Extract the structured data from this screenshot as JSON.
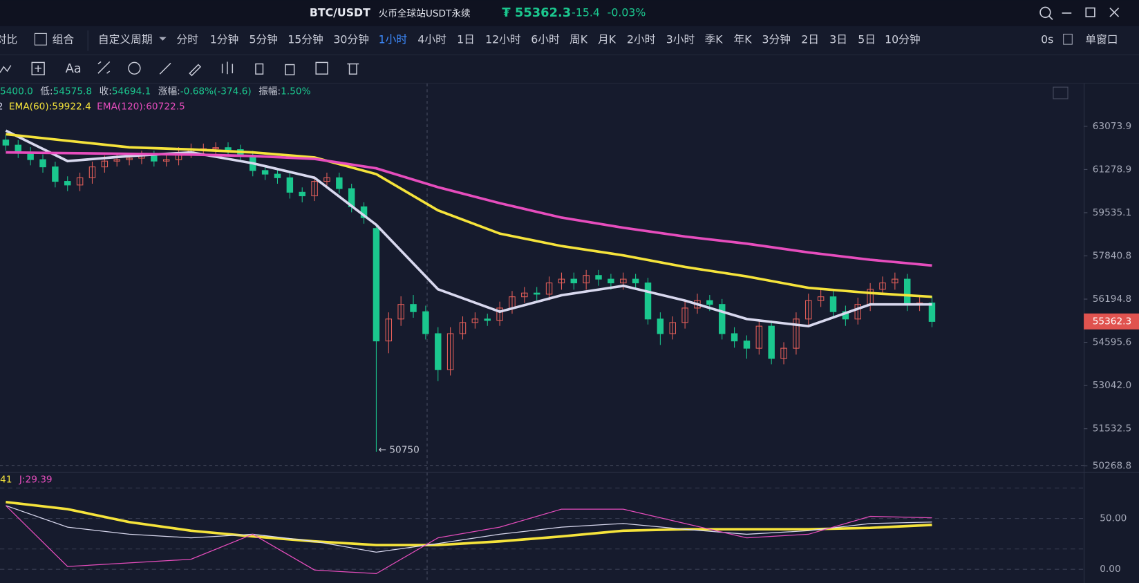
{
  "header": {
    "symbol": "BTC/USDT",
    "exchange": "火币全球站USDT永续",
    "price": "₮ 55362.3",
    "change": "-15.4",
    "change_pct": "-0.03%"
  },
  "toolbar": {
    "left": [
      "对比",
      "组合"
    ],
    "periods": [
      "自定义周期",
      "分时",
      "1分钟",
      "5分钟",
      "15分钟",
      "30分钟",
      "1小时",
      "4小时",
      "1日",
      "12小时",
      "6小时",
      "周K",
      "月K",
      "2小时",
      "3小时",
      "季K",
      "年K",
      "3分钟",
      "2日",
      "3日",
      "5日",
      "10分钟"
    ],
    "active_period": "1小时",
    "right": [
      "0s",
      "单窗口"
    ],
    "text_tool": "Aa"
  },
  "info": [
    {
      "label": "",
      "value": "5400.0"
    },
    {
      "label": "低:",
      "value": "54575.8"
    },
    {
      "label": "收:",
      "value": "54694.1"
    },
    {
      "label": "涨幅:",
      "value": "-0.68%(-374.6)"
    },
    {
      "label": "振幅:",
      "value": "1.50%"
    }
  ],
  "chart_data": [
    {
      "type": "candlestick",
      "log_scale": true,
      "ylim": [
        50116,
        64903
      ],
      "yticks": [
        63073.9,
        61278.9,
        59535.1,
        57840.8,
        56194.8,
        54595.6,
        {
          "value": 53042,
          "label": "53042.0"
        },
        51532.5,
        50268.8
      ],
      "up_color": "#e8605a",
      "down_color": "#1bc78e",
      "open": [
        62500,
        62284,
        61983,
        61684,
        61385,
        60794,
        60647,
        60942,
        61385,
        61624,
        61684,
        61744,
        61833,
        61624,
        61684,
        61983,
        62134,
        62134,
        62180,
        62100,
        61833,
        61237,
        61089,
        60942,
        60354,
        60209,
        60794,
        60942,
        60501,
        59771,
        58911,
        54645,
        55453,
        55996,
        55725,
        54913,
        53607,
        54913,
        55323,
        55453,
        55400,
        55861,
        56282,
        56424,
        56380,
        56806,
        56950,
        56806,
        57091,
        56950,
        56806,
        56950,
        56806,
        55453,
        54913,
        55323,
        55861,
        56141,
        55996,
        54913,
        54645,
        54381,
        55189,
        54011,
        54381,
        55453,
        56141,
        56282,
        55725,
        55453,
        55996,
        56566,
        56806,
        56950,
        55996,
        56050
      ],
      "high": [
        62700,
        62500,
        62200,
        61900,
        61600,
        61000,
        61150,
        61600,
        61850,
        61900,
        61950,
        62050,
        62050,
        61900,
        62200,
        62350,
        62350,
        62400,
        62400,
        62300,
        62050,
        61450,
        61300,
        61150,
        60550,
        61000,
        61150,
        61150,
        60700,
        59950,
        59100,
        55700,
        56300,
        56350,
        55950,
        55150,
        55150,
        55550,
        55700,
        55650,
        56100,
        56500,
        56650,
        56650,
        57050,
        57200,
        57200,
        57300,
        57300,
        57150,
        57200,
        57150,
        57000,
        55700,
        55550,
        56100,
        56400,
        56350,
        56200,
        55150,
        54850,
        55400,
        55400,
        54600,
        55700,
        56400,
        56550,
        56500,
        55950,
        56250,
        56800,
        57050,
        57200,
        57150,
        56300,
        56300
      ],
      "low": [
        62050,
        61750,
        61450,
        61150,
        60550,
        60400,
        60400,
        60700,
        61150,
        61400,
        61450,
        61500,
        61400,
        61400,
        61450,
        61750,
        61900,
        61900,
        61850,
        61600,
        61000,
        60850,
        60700,
        60100,
        59950,
        60000,
        60550,
        60300,
        59550,
        59100,
        50750,
        54200,
        55200,
        55500,
        54700,
        53200,
        53400,
        54700,
        55100,
        55200,
        55200,
        55650,
        56050,
        56150,
        56150,
        56550,
        56550,
        56550,
        56700,
        56550,
        56550,
        56550,
        55250,
        54500,
        54700,
        55100,
        55650,
        55750,
        54700,
        54400,
        54000,
        54150,
        53800,
        53800,
        54150,
        55200,
        55900,
        55500,
        55200,
        55250,
        55750,
        56350,
        56550,
        55750,
        55750,
        55150
      ],
      "close": [
        62284,
        61983,
        61684,
        61385,
        60794,
        60647,
        60942,
        61385,
        61624,
        61684,
        61744,
        61833,
        61624,
        61684,
        61983,
        62134,
        62134,
        62180,
        62100,
        61833,
        61237,
        61089,
        60942,
        60354,
        60209,
        60794,
        60942,
        60501,
        59771,
        59341,
        54645,
        55453,
        55996,
        55725,
        54913,
        53607,
        54913,
        55323,
        55453,
        55400,
        55861,
        56282,
        56424,
        56380,
        56806,
        56950,
        56806,
        57091,
        56950,
        56806,
        56950,
        56806,
        55453,
        54913,
        55323,
        55861,
        56141,
        55996,
        54913,
        54645,
        54381,
        55189,
        54011,
        54381,
        55453,
        56141,
        56282,
        55725,
        55453,
        55996,
        56566,
        56806,
        56950,
        55996,
        56050,
        55362.3
      ],
      "lines": [
        {
          "label": "2",
          "color": "#d8d8ee",
          "x": [
            0,
            5,
            10,
            15,
            20,
            25,
            30,
            35,
            40,
            45,
            50,
            55,
            60,
            65,
            70,
            75
          ],
          "values": [
            62891,
            61624,
            61833,
            61983,
            61534,
            60942,
            59055,
            56566,
            55725,
            56339,
            56697,
            56141,
            55453,
            55189,
            55996,
            55996
          ]
        },
        {
          "label": "EMA(60):59922.4",
          "color": "#f5e33b",
          "x": [
            0,
            5,
            10,
            15,
            20,
            25,
            30,
            35,
            40,
            45,
            50,
            55,
            60,
            65,
            70,
            75
          ],
          "values": [
            62739,
            62466,
            62194,
            62104,
            61983,
            61774,
            61089,
            59628,
            58710,
            58222,
            57862,
            57415,
            57053,
            56620,
            56424,
            56282
          ]
        },
        {
          "label": "EMA(120):60722.5",
          "color": "#e64dbd",
          "x": [
            0,
            5,
            10,
            15,
            20,
            25,
            30,
            35,
            40,
            45,
            50,
            55,
            60,
            65,
            70,
            75
          ],
          "values": [
            61983,
            61953,
            61924,
            61893,
            61833,
            61714,
            61326,
            60558,
            59916,
            59341,
            58940,
            58594,
            58316,
            57975,
            57693,
            57471
          ]
        }
      ],
      "last_price": 55362.3,
      "low_annotation": "← 50750"
    },
    {
      "type": "line",
      "ylim": [
        -11.3,
        94.4
      ],
      "yticks": [
        {
          "value": 0,
          "label": "0.00"
        },
        {
          "value": 50,
          "label": "50.00"
        }
      ],
      "grid_levels": [
        20,
        80
      ],
      "series": [
        {
          "name": "41",
          "color": "#f5e33b",
          "values": [
            66.2,
            59.2,
            46.5,
            38.0,
            32.4,
            27.5,
            23.9,
            23.9,
            27.5,
            32.4,
            38.0,
            39.4,
            39.4,
            39.4,
            40.8,
            43.7
          ]
        },
        {
          "color": "#d8d8ee",
          "values": [
            62.7,
            41.5,
            34.5,
            31.0,
            34.5,
            27.5,
            16.9,
            25.4,
            34.5,
            41.5,
            45.1,
            39.4,
            34.5,
            38.0,
            45.1,
            46.5
          ]
        },
        {
          "name": "J:29.39",
          "color": "#e64dbd",
          "values": [
            62.7,
            2.8,
            6.3,
            9.9,
            34.5,
            -0.7,
            -4.2,
            31.0,
            41.5,
            59.2,
            59.2,
            45.1,
            31.0,
            34.5,
            52.1,
            50.7
          ]
        }
      ]
    }
  ]
}
